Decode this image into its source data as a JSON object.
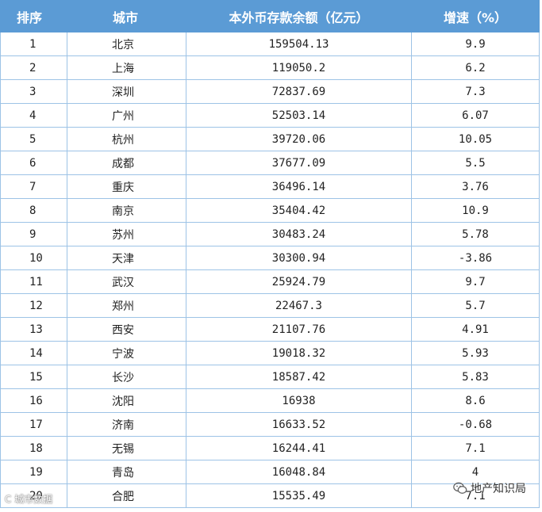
{
  "table": {
    "headers": {
      "rank": "排序",
      "city": "城市",
      "amount": "本外币存款余额（亿元）",
      "growth": "增速（%）"
    },
    "rows": [
      {
        "rank": "1",
        "city": "北京",
        "amount": "159504.13",
        "growth": "9.9"
      },
      {
        "rank": "2",
        "city": "上海",
        "amount": "119050.2",
        "growth": "6.2"
      },
      {
        "rank": "3",
        "city": "深圳",
        "amount": "72837.69",
        "growth": "7.3"
      },
      {
        "rank": "4",
        "city": "广州",
        "amount": "52503.14",
        "growth": "6.07"
      },
      {
        "rank": "5",
        "city": "杭州",
        "amount": "39720.06",
        "growth": "10.05"
      },
      {
        "rank": "6",
        "city": "成都",
        "amount": "37677.09",
        "growth": "5.5"
      },
      {
        "rank": "7",
        "city": "重庆",
        "amount": "36496.14",
        "growth": "3.76"
      },
      {
        "rank": "8",
        "city": "南京",
        "amount": "35404.42",
        "growth": "10.9"
      },
      {
        "rank": "9",
        "city": "苏州",
        "amount": "30483.24",
        "growth": "5.78"
      },
      {
        "rank": "10",
        "city": "天津",
        "amount": "30300.94",
        "growth": "-3.86"
      },
      {
        "rank": "11",
        "city": "武汉",
        "amount": "25924.79",
        "growth": "9.7"
      },
      {
        "rank": "12",
        "city": "郑州",
        "amount": "22467.3",
        "growth": "5.7"
      },
      {
        "rank": "13",
        "city": "西安",
        "amount": "21107.76",
        "growth": "4.91"
      },
      {
        "rank": "14",
        "city": "宁波",
        "amount": "19018.32",
        "growth": "5.93"
      },
      {
        "rank": "15",
        "city": "长沙",
        "amount": "18587.42",
        "growth": "5.83"
      },
      {
        "rank": "16",
        "city": "沈阳",
        "amount": "16938",
        "growth": "8.6"
      },
      {
        "rank": "17",
        "city": "济南",
        "amount": "16633.52",
        "growth": "-0.68"
      },
      {
        "rank": "18",
        "city": "无锡",
        "amount": "16244.41",
        "growth": "7.1"
      },
      {
        "rank": "19",
        "city": "青岛",
        "amount": "16048.84",
        "growth": "4"
      },
      {
        "rank": "20",
        "city": "合肥",
        "amount": "15535.49",
        "growth": "7.1"
      }
    ]
  },
  "watermarks": {
    "left": "C 城市数据",
    "right": "地产知识局",
    "right_icon": "wechat-icon"
  },
  "colors": {
    "header_bg": "#5b9bd5",
    "grid_line": "#9dc3e6"
  }
}
